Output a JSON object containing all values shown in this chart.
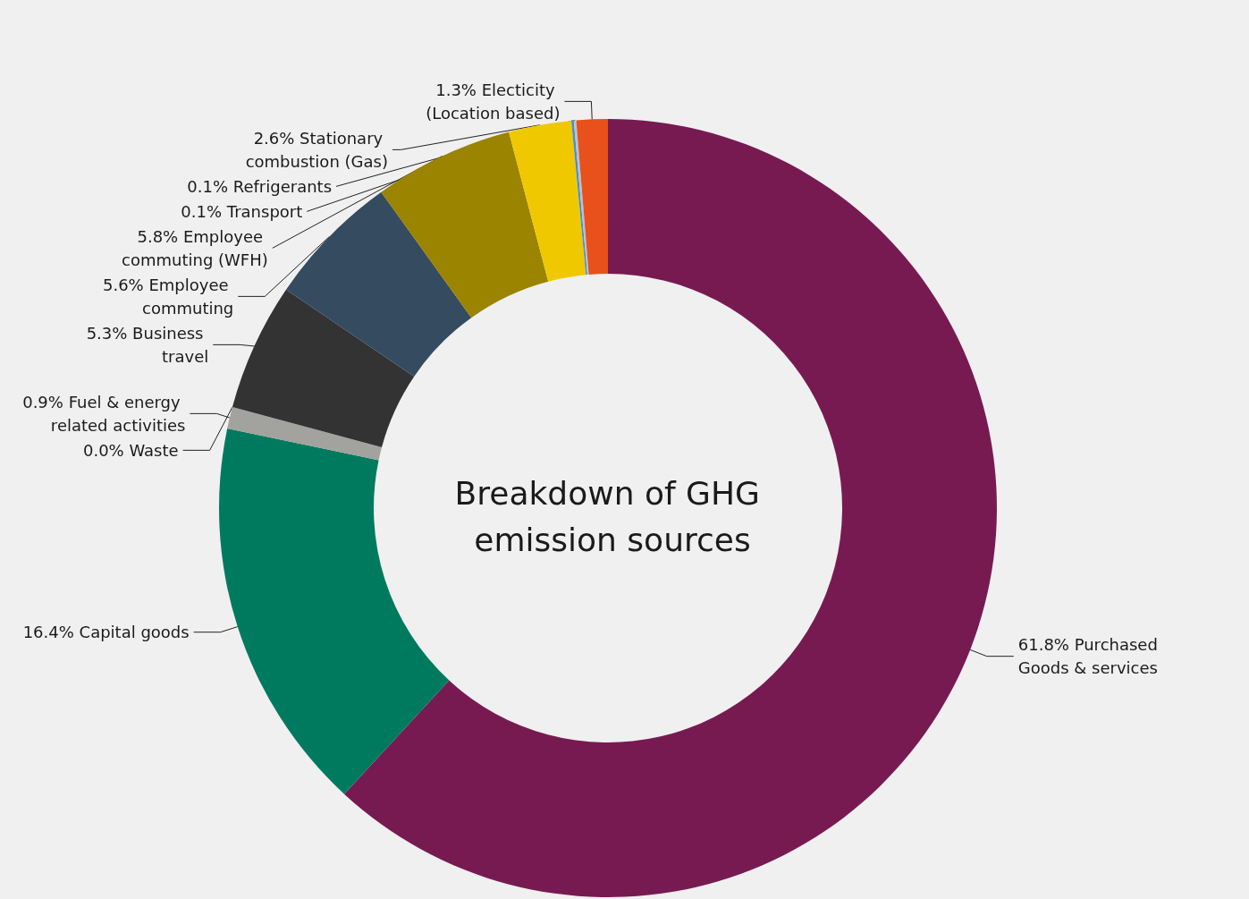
{
  "chart_data": {
    "type": "donut",
    "title": "Breakdown of GHG emission sources",
    "categories": [
      "Purchased Goods & services",
      "Capital goods",
      "Fuel & energy related activities",
      "Waste",
      "Business travel",
      "Employee commuting",
      "Employee commuting (WFH)",
      "Stationary combustion (Gas)",
      "Transport",
      "Refrigerants",
      "Electicity (Location based)"
    ],
    "values": [
      61.8,
      16.4,
      0.9,
      0.0,
      5.3,
      5.6,
      5.8,
      2.6,
      0.1,
      0.1,
      1.3
    ],
    "value_labels": [
      "61.8%",
      "16.4%",
      "0.9%",
      "0.0%",
      "5.3%",
      "5.6%",
      "5.8%",
      "2.6%",
      "0.1%",
      "0.1%",
      "1.3%"
    ],
    "colors": [
      "#781a52",
      "#007a5f",
      "#a2a29e",
      "#7a7a7a",
      "#333333",
      "#354b60",
      "#9a8400",
      "#f0c800",
      "#4a8fc6",
      "#b9c2c9",
      "#e8501c"
    ],
    "data_labels": true,
    "legend": false
  }
}
